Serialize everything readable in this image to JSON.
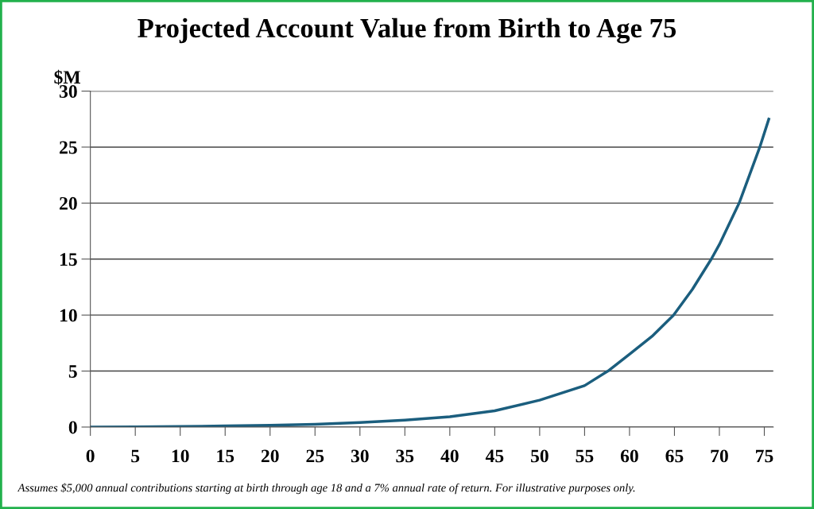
{
  "chart_data": {
    "type": "line",
    "title": "Projected Account Value from Birth to Age 75",
    "ylabel": "$M",
    "x": [
      0,
      5,
      10,
      15,
      20,
      25,
      30,
      35,
      40,
      45,
      50,
      55,
      57.6,
      60,
      62.5,
      64.9,
      67,
      69.1,
      70,
      72.2,
      74.5,
      75.5
    ],
    "series": [
      {
        "color": "#1b5e7e",
        "values": [
          0,
          0.02,
          0.05,
          0.1,
          0.15,
          0.25,
          0.4,
          0.62,
          0.92,
          1.45,
          2.4,
          3.7,
          5,
          6.5,
          8.1,
          10,
          12.3,
          15,
          16.3,
          20,
          25,
          27.5
        ]
      }
    ],
    "xlim": [
      0,
      76
    ],
    "xticks": [
      0,
      5,
      10,
      15,
      20,
      25,
      30,
      35,
      40,
      45,
      50,
      55,
      60,
      65,
      70,
      75
    ],
    "ylim": [
      0,
      30
    ],
    "yticks": [
      0,
      5,
      10,
      15,
      20,
      25,
      30
    ],
    "grid": "y",
    "legend": false,
    "annotations": [
      "Assumes $5,000 annual contributions starting at birth through age 18 and a 7% annual rate of return. For illustrative purposes only."
    ]
  }
}
